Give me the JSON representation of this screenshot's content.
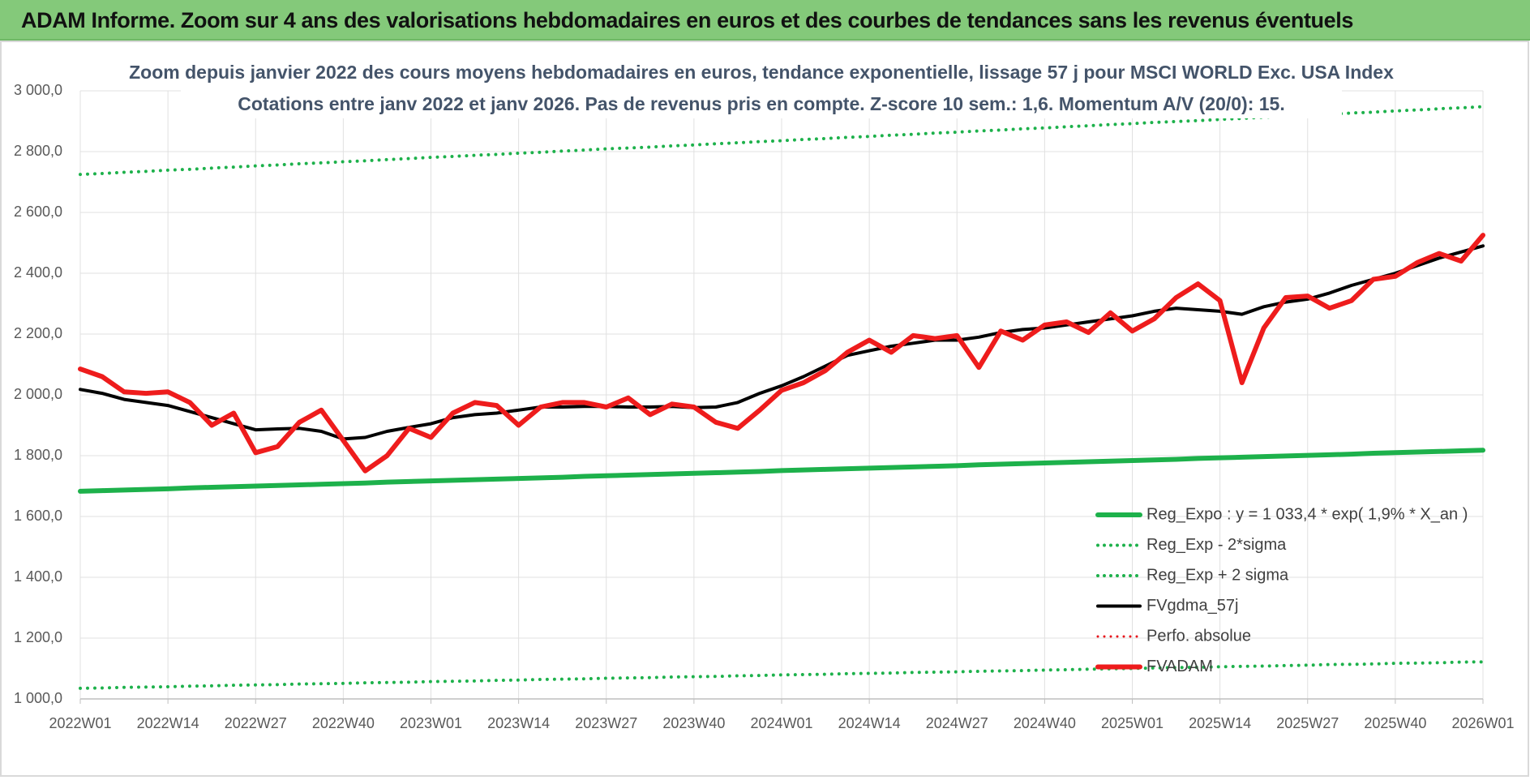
{
  "header": {
    "title": "ADAM Informe. Zoom sur 4 ans des valorisations hebdomadaires en euros et des courbes de tendances sans les revenus éventuels"
  },
  "chart_data": {
    "type": "line",
    "title": "Zoom depuis janvier 2022 des cours moyens hebdomadaires en euros, tendance exponentielle, lissage 57 j pour MSCI WORLD Exc. USA Index",
    "subtitle": "Cotations entre janv 2022 et janv 2026. Pas de revenus pris en compte. Z-score 10 sem.: 1,6. Momentum A/V (20/0): 15.",
    "categories": [
      "2022W01",
      null,
      null,
      null,
      "2022W14",
      null,
      null,
      null,
      "2022W27",
      null,
      null,
      null,
      "2022W40",
      null,
      null,
      null,
      "2023W01",
      null,
      null,
      null,
      "2023W14",
      null,
      null,
      null,
      "2023W27",
      null,
      null,
      null,
      "2023W40",
      null,
      null,
      null,
      "2024W01",
      null,
      null,
      null,
      "2024W14",
      null,
      null,
      null,
      "2024W27",
      null,
      null,
      null,
      "2024W40",
      null,
      null,
      null,
      "2025W01",
      null,
      null,
      null,
      "2025W14",
      null,
      null,
      null,
      "2025W27",
      null,
      null,
      null,
      "2025W40",
      null,
      null,
      null,
      "2026W01"
    ],
    "ylim": [
      1000,
      3000
    ],
    "yticks": [
      {
        "value": 1000,
        "label": "1 000,0"
      },
      {
        "value": 1200,
        "label": "1 200,0"
      },
      {
        "value": 1400,
        "label": "1 400,0"
      },
      {
        "value": 1600,
        "label": "1 600,0"
      },
      {
        "value": 1800,
        "label": "1 800,0"
      },
      {
        "value": 2000,
        "label": "2 000,0"
      },
      {
        "value": 2200,
        "label": "2 200,0"
      },
      {
        "value": 2400,
        "label": "2 400,0"
      },
      {
        "value": 2600,
        "label": "2 600,0"
      },
      {
        "value": 2800,
        "label": "2 800,0"
      },
      {
        "value": 3000,
        "label": "3 000,0"
      }
    ],
    "grid": true,
    "legend": "lower right",
    "series": [
      {
        "name": "Reg_Expo : y = 1 033,4 * exp( 1,9% *  X_an )",
        "color": "#1db14b",
        "style": "solid",
        "values": [
          1683,
          1685,
          1687,
          1689,
          1691,
          1694,
          1696,
          1698,
          1700,
          1702,
          1704,
          1706,
          1708,
          1710,
          1713,
          1715,
          1717,
          1719,
          1721,
          1723,
          1725,
          1727,
          1729,
          1732,
          1734,
          1736,
          1738,
          1740,
          1742,
          1744,
          1746,
          1748,
          1751,
          1753,
          1755,
          1757,
          1759,
          1761,
          1763,
          1765,
          1767,
          1770,
          1772,
          1774,
          1776,
          1778,
          1780,
          1782,
          1784,
          1786,
          1788,
          1791,
          1793,
          1795,
          1797,
          1799,
          1801,
          1803,
          1805,
          1808,
          1810,
          1812,
          1814,
          1816,
          1818
        ]
      },
      {
        "name": "Reg_Exp - 2*sigma",
        "color": "#1db14b",
        "style": "dotted",
        "values": [
          1035,
          1036,
          1038,
          1039,
          1040,
          1042,
          1043,
          1045,
          1046,
          1047,
          1049,
          1050,
          1051,
          1053,
          1054,
          1055,
          1057,
          1058,
          1059,
          1061,
          1062,
          1064,
          1065,
          1066,
          1068,
          1069,
          1070,
          1072,
          1073,
          1074,
          1076,
          1077,
          1079,
          1080,
          1081,
          1083,
          1084,
          1085,
          1087,
          1088,
          1089,
          1091,
          1092,
          1093,
          1095,
          1096,
          1098,
          1099,
          1100,
          1102,
          1103,
          1104,
          1106,
          1107,
          1108,
          1110,
          1111,
          1113,
          1114,
          1115,
          1117,
          1118,
          1119,
          1121,
          1122
        ]
      },
      {
        "name": "Reg_Exp + 2 sigma",
        "color": "#1db14b",
        "style": "dotted",
        "values": [
          2725,
          2728,
          2732,
          2735,
          2739,
          2742,
          2746,
          2749,
          2753,
          2756,
          2760,
          2763,
          2767,
          2770,
          2774,
          2777,
          2781,
          2784,
          2788,
          2791,
          2795,
          2798,
          2802,
          2805,
          2809,
          2812,
          2815,
          2819,
          2822,
          2826,
          2829,
          2833,
          2836,
          2840,
          2843,
          2847,
          2850,
          2854,
          2857,
          2861,
          2864,
          2868,
          2871,
          2875,
          2878,
          2882,
          2885,
          2889,
          2892,
          2896,
          2899,
          2902,
          2906,
          2909,
          2913,
          2916,
          2920,
          2923,
          2927,
          2930,
          2934,
          2937,
          2941,
          2944,
          2948
        ]
      },
      {
        "name": "FVgdma_57j",
        "color": "#000000",
        "style": "solid",
        "values": [
          2018,
          2005,
          1985,
          1975,
          1965,
          1945,
          1925,
          1905,
          1885,
          1888,
          1890,
          1880,
          1855,
          1860,
          1880,
          1893,
          1905,
          1925,
          1935,
          1940,
          1950,
          1960,
          1960,
          1962,
          1962,
          1960,
          1960,
          1962,
          1958,
          1960,
          1975,
          2005,
          2030,
          2060,
          2095,
          2130,
          2145,
          2160,
          2170,
          2180,
          2180,
          2190,
          2205,
          2215,
          2220,
          2230,
          2240,
          2250,
          2260,
          2275,
          2285,
          2280,
          2275,
          2265,
          2290,
          2305,
          2315,
          2335,
          2360,
          2380,
          2400,
          2425,
          2450,
          2470,
          2490
        ]
      },
      {
        "name": "Perfo. absolue",
        "color": "#e8141b",
        "style": "dotted",
        "values": [
          null,
          null,
          null,
          null,
          null,
          null,
          null,
          null,
          null,
          null,
          null,
          null,
          null,
          null,
          null,
          null,
          null,
          null,
          null,
          null,
          null,
          null,
          null,
          null,
          null,
          null,
          null,
          null,
          null,
          null,
          null,
          null,
          null,
          null,
          null,
          null,
          null,
          null,
          null,
          null,
          null,
          null,
          null,
          null,
          null,
          null,
          null,
          null,
          null,
          null,
          null,
          null,
          null,
          null,
          null,
          null,
          null,
          null,
          null,
          null,
          null,
          null,
          null,
          null,
          null
        ]
      },
      {
        "name": "FVADAM",
        "color": "#ee1c1c",
        "style": "solid",
        "values": [
          2085,
          2060,
          2010,
          2005,
          2010,
          1975,
          1900,
          1940,
          1810,
          1830,
          1910,
          1950,
          1850,
          1750,
          1800,
          1890,
          1860,
          1940,
          1975,
          1965,
          1900,
          1960,
          1975,
          1975,
          1960,
          1990,
          1935,
          1970,
          1960,
          1910,
          1890,
          1950,
          2015,
          2040,
          2080,
          2140,
          2180,
          2140,
          2195,
          2185,
          2195,
          2090,
          2210,
          2180,
          2230,
          2240,
          2205,
          2270,
          2210,
          2250,
          2320,
          2365,
          2310,
          2040,
          2220,
          2320,
          2325,
          2285,
          2310,
          2380,
          2390,
          2435,
          2465,
          2440,
          2525
        ]
      }
    ]
  }
}
